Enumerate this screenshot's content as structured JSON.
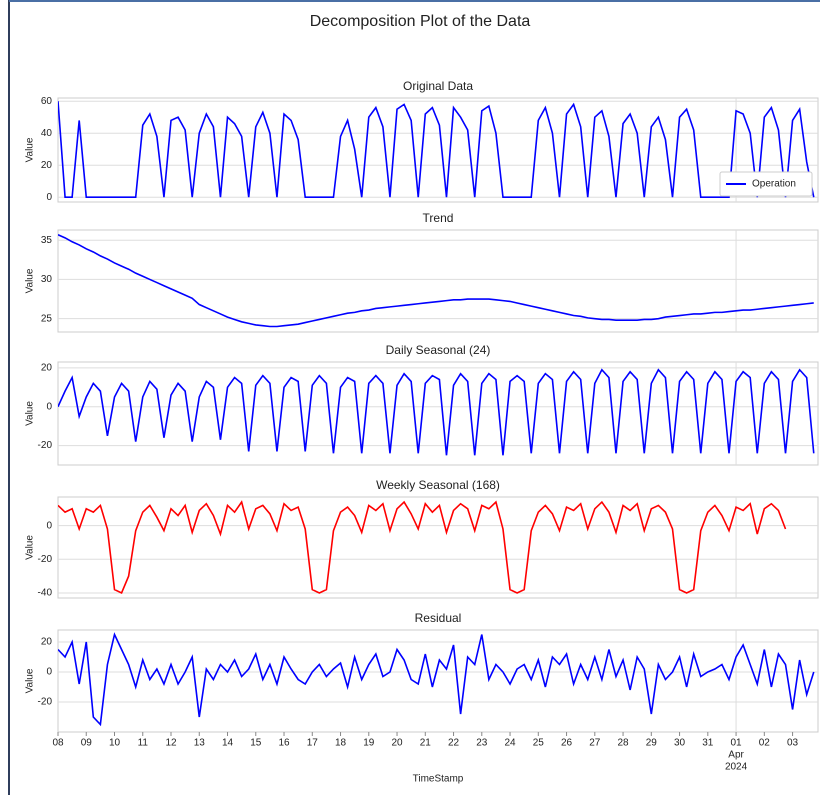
{
  "chart_data": {
    "type": "line",
    "title": "Decomposition Plot of the Data",
    "xlabel": "TimeStamp",
    "xlim": [
      8,
      34.9
    ],
    "xticks": [
      {
        "value": 8,
        "label": "08"
      },
      {
        "value": 9,
        "label": "09"
      },
      10,
      11,
      12,
      13,
      14,
      15,
      16,
      17,
      18,
      19,
      20,
      21,
      22,
      23,
      24,
      25,
      26,
      27,
      28,
      29,
      30,
      31,
      {
        "value": 32,
        "label": "01",
        "sublabels": [
          "Apr",
          "2024"
        ]
      },
      {
        "value": 33,
        "label": "02"
      },
      {
        "value": 34,
        "label": "03"
      }
    ],
    "x": [
      8,
      8.25,
      8.5,
      8.75,
      9,
      9.25,
      9.5,
      9.75,
      10,
      10.25,
      10.5,
      10.75,
      11,
      11.25,
      11.5,
      11.75,
      12,
      12.25,
      12.5,
      12.75,
      13,
      13.25,
      13.5,
      13.75,
      14,
      14.25,
      14.5,
      14.75,
      15,
      15.25,
      15.5,
      15.75,
      16,
      16.25,
      16.5,
      16.75,
      17,
      17.25,
      17.5,
      17.75,
      18,
      18.25,
      18.5,
      18.75,
      19,
      19.25,
      19.5,
      19.75,
      20,
      20.25,
      20.5,
      20.75,
      21,
      21.25,
      21.5,
      21.75,
      22,
      22.25,
      22.5,
      22.75,
      23,
      23.25,
      23.5,
      23.75,
      24,
      24.25,
      24.5,
      24.75,
      25,
      25.25,
      25.5,
      25.75,
      26,
      26.25,
      26.5,
      26.75,
      27,
      27.25,
      27.5,
      27.75,
      28,
      28.25,
      28.5,
      28.75,
      29,
      29.25,
      29.5,
      29.75,
      30,
      30.25,
      30.5,
      30.75,
      31,
      31.25,
      31.5,
      31.75,
      32,
      32.25,
      32.5,
      32.75,
      33,
      33.25,
      33.5,
      33.75,
      34,
      34.25,
      34.5,
      34.75
    ],
    "grid": true,
    "panels": [
      {
        "title": "Original Data",
        "ylabel": "Value",
        "ylim": [
          -3,
          62
        ],
        "yticks": [
          0,
          20,
          40,
          60
        ],
        "legend": "lower right",
        "series": [
          {
            "name": "Operation",
            "color": "#0000ff",
            "values": [
              60,
              0,
              0,
              48,
              0,
              0,
              0,
              0,
              0,
              0,
              0,
              0,
              45,
              52,
              38,
              0,
              48,
              50,
              42,
              0,
              40,
              52,
              44,
              0,
              50,
              46,
              38,
              0,
              44,
              53,
              40,
              0,
              52,
              48,
              36,
              0,
              0,
              0,
              0,
              0,
              38,
              48,
              30,
              0,
              50,
              56,
              44,
              0,
              55,
              58,
              48,
              0,
              52,
              56,
              45,
              0,
              56,
              50,
              42,
              0,
              54,
              57,
              40,
              0,
              0,
              0,
              0,
              0,
              48,
              56,
              40,
              0,
              52,
              58,
              44,
              0,
              50,
              54,
              38,
              0,
              46,
              52,
              40,
              0,
              44,
              50,
              36,
              0,
              50,
              55,
              42,
              0,
              0,
              0,
              0,
              0,
              54,
              52,
              40,
              0,
              50,
              56,
              42,
              0,
              48,
              55,
              22,
              0
            ]
          }
        ]
      },
      {
        "title": "Trend",
        "ylabel": "Value",
        "ylim": [
          23.3,
          36.3
        ],
        "yticks": [
          25,
          30,
          35
        ],
        "series": [
          {
            "color": "#0000ff",
            "values": [
              35.7,
              35.3,
              34.8,
              34.4,
              33.9,
              33.5,
              33.0,
              32.6,
              32.1,
              31.7,
              31.3,
              30.8,
              30.4,
              30.0,
              29.6,
              29.2,
              28.8,
              28.4,
              28.0,
              27.6,
              26.8,
              26.4,
              26.0,
              25.6,
              25.2,
              24.9,
              24.6,
              24.4,
              24.2,
              24.1,
              24.0,
              24.0,
              24.1,
              24.2,
              24.3,
              24.5,
              24.7,
              24.9,
              25.1,
              25.3,
              25.5,
              25.7,
              25.8,
              26.0,
              26.1,
              26.3,
              26.4,
              26.5,
              26.6,
              26.7,
              26.8,
              26.9,
              27.0,
              27.1,
              27.2,
              27.3,
              27.4,
              27.4,
              27.5,
              27.5,
              27.5,
              27.5,
              27.4,
              27.3,
              27.2,
              27.0,
              26.8,
              26.6,
              26.4,
              26.2,
              26.0,
              25.8,
              25.6,
              25.4,
              25.3,
              25.1,
              25.0,
              24.9,
              24.9,
              24.8,
              24.8,
              24.8,
              24.8,
              24.9,
              24.9,
              25.0,
              25.2,
              25.3,
              25.4,
              25.5,
              25.6,
              25.6,
              25.7,
              25.8,
              25.8,
              25.9,
              26.0,
              26.1,
              26.1,
              26.2,
              26.3,
              26.4,
              26.5,
              26.6,
              26.7,
              26.8,
              26.9,
              27.0
            ]
          }
        ]
      },
      {
        "title": "Daily Seasonal (24)",
        "ylabel": "Value",
        "ylim": [
          -30,
          23
        ],
        "yticks": [
          -20,
          0,
          20
        ],
        "series": [
          {
            "color": "#0000ff",
            "values": [
              0,
              8,
              15,
              -5,
              5,
              12,
              8,
              -15,
              5,
              12,
              8,
              -18,
              5,
              13,
              9,
              -16,
              6,
              12,
              8,
              -18,
              5,
              13,
              10,
              -17,
              10,
              15,
              12,
              -23,
              11,
              16,
              12,
              -23,
              10,
              15,
              13,
              -23,
              11,
              16,
              12,
              -24,
              10,
              15,
              13,
              -24,
              12,
              16,
              12,
              -24,
              11,
              17,
              13,
              -24,
              12,
              16,
              14,
              -25,
              11,
              17,
              13,
              -25,
              12,
              17,
              14,
              -25,
              13,
              16,
              13,
              -24,
              12,
              17,
              14,
              -24,
              13,
              18,
              14,
              -24,
              12,
              19,
              15,
              -24,
              13,
              18,
              14,
              -24,
              12,
              19,
              15,
              -24,
              13,
              18,
              14,
              -24,
              12,
              18,
              14,
              -24,
              13,
              18,
              15,
              -24,
              12,
              18,
              14,
              -24,
              13,
              19,
              15,
              -24
            ]
          }
        ]
      },
      {
        "title": "Weekly Seasonal (168)",
        "ylabel": "Value",
        "ylim": [
          -43,
          17
        ],
        "yticks": [
          -40,
          -20,
          0
        ],
        "series": [
          {
            "color": "#ff0000",
            "values": [
              12,
              8,
              10,
              -2,
              10,
              8,
              12,
              -2,
              -38,
              -40,
              -30,
              -3,
              8,
              12,
              5,
              -3,
              10,
              6,
              12,
              -4,
              9,
              13,
              6,
              -5,
              12,
              8,
              14,
              -2,
              10,
              12,
              7,
              -3,
              13,
              9,
              11,
              -2,
              -38,
              -40,
              -38,
              -3,
              8,
              11,
              6,
              -4,
              12,
              9,
              13,
              -3,
              10,
              14,
              7,
              -2,
              13,
              8,
              12,
              -4,
              9,
              13,
              10,
              -3,
              12,
              10,
              14,
              -2,
              -38,
              -40,
              -38,
              -3,
              8,
              12,
              7,
              -3,
              11,
              9,
              13,
              -2,
              10,
              14,
              8,
              -4,
              12,
              9,
              13,
              -3,
              10,
              12,
              8,
              -2,
              -38,
              -40,
              -38,
              -3,
              8,
              12,
              6,
              -3,
              11,
              9,
              13,
              -5,
              10,
              13,
              9,
              -2
            ]
          }
        ]
      },
      {
        "title": "Residual",
        "ylabel": "Value",
        "ylim": [
          -40,
          28
        ],
        "yticks": [
          -20,
          0,
          20
        ],
        "series": [
          {
            "color": "#0000ff",
            "values": [
              15,
              10,
              20,
              -8,
              20,
              -30,
              -35,
              5,
              25,
              15,
              5,
              -10,
              8,
              -5,
              2,
              -8,
              5,
              -8,
              0,
              10,
              -30,
              2,
              -5,
              5,
              0,
              8,
              -3,
              2,
              12,
              -5,
              5,
              -8,
              10,
              2,
              -5,
              -8,
              0,
              5,
              -3,
              2,
              6,
              -10,
              10,
              -5,
              5,
              12,
              -3,
              0,
              15,
              8,
              -5,
              -8,
              12,
              -10,
              8,
              2,
              18,
              -28,
              10,
              5,
              25,
              -5,
              5,
              0,
              -8,
              2,
              5,
              -5,
              8,
              -10,
              10,
              5,
              12,
              -8,
              5,
              -5,
              10,
              -5,
              15,
              -3,
              8,
              -12,
              10,
              2,
              -28,
              5,
              -5,
              0,
              10,
              -10,
              12,
              -3,
              0,
              2,
              5,
              -5,
              10,
              18,
              5,
              -8,
              15,
              -10,
              12,
              5,
              -25,
              8,
              -15,
              0
            ]
          }
        ]
      }
    ]
  }
}
